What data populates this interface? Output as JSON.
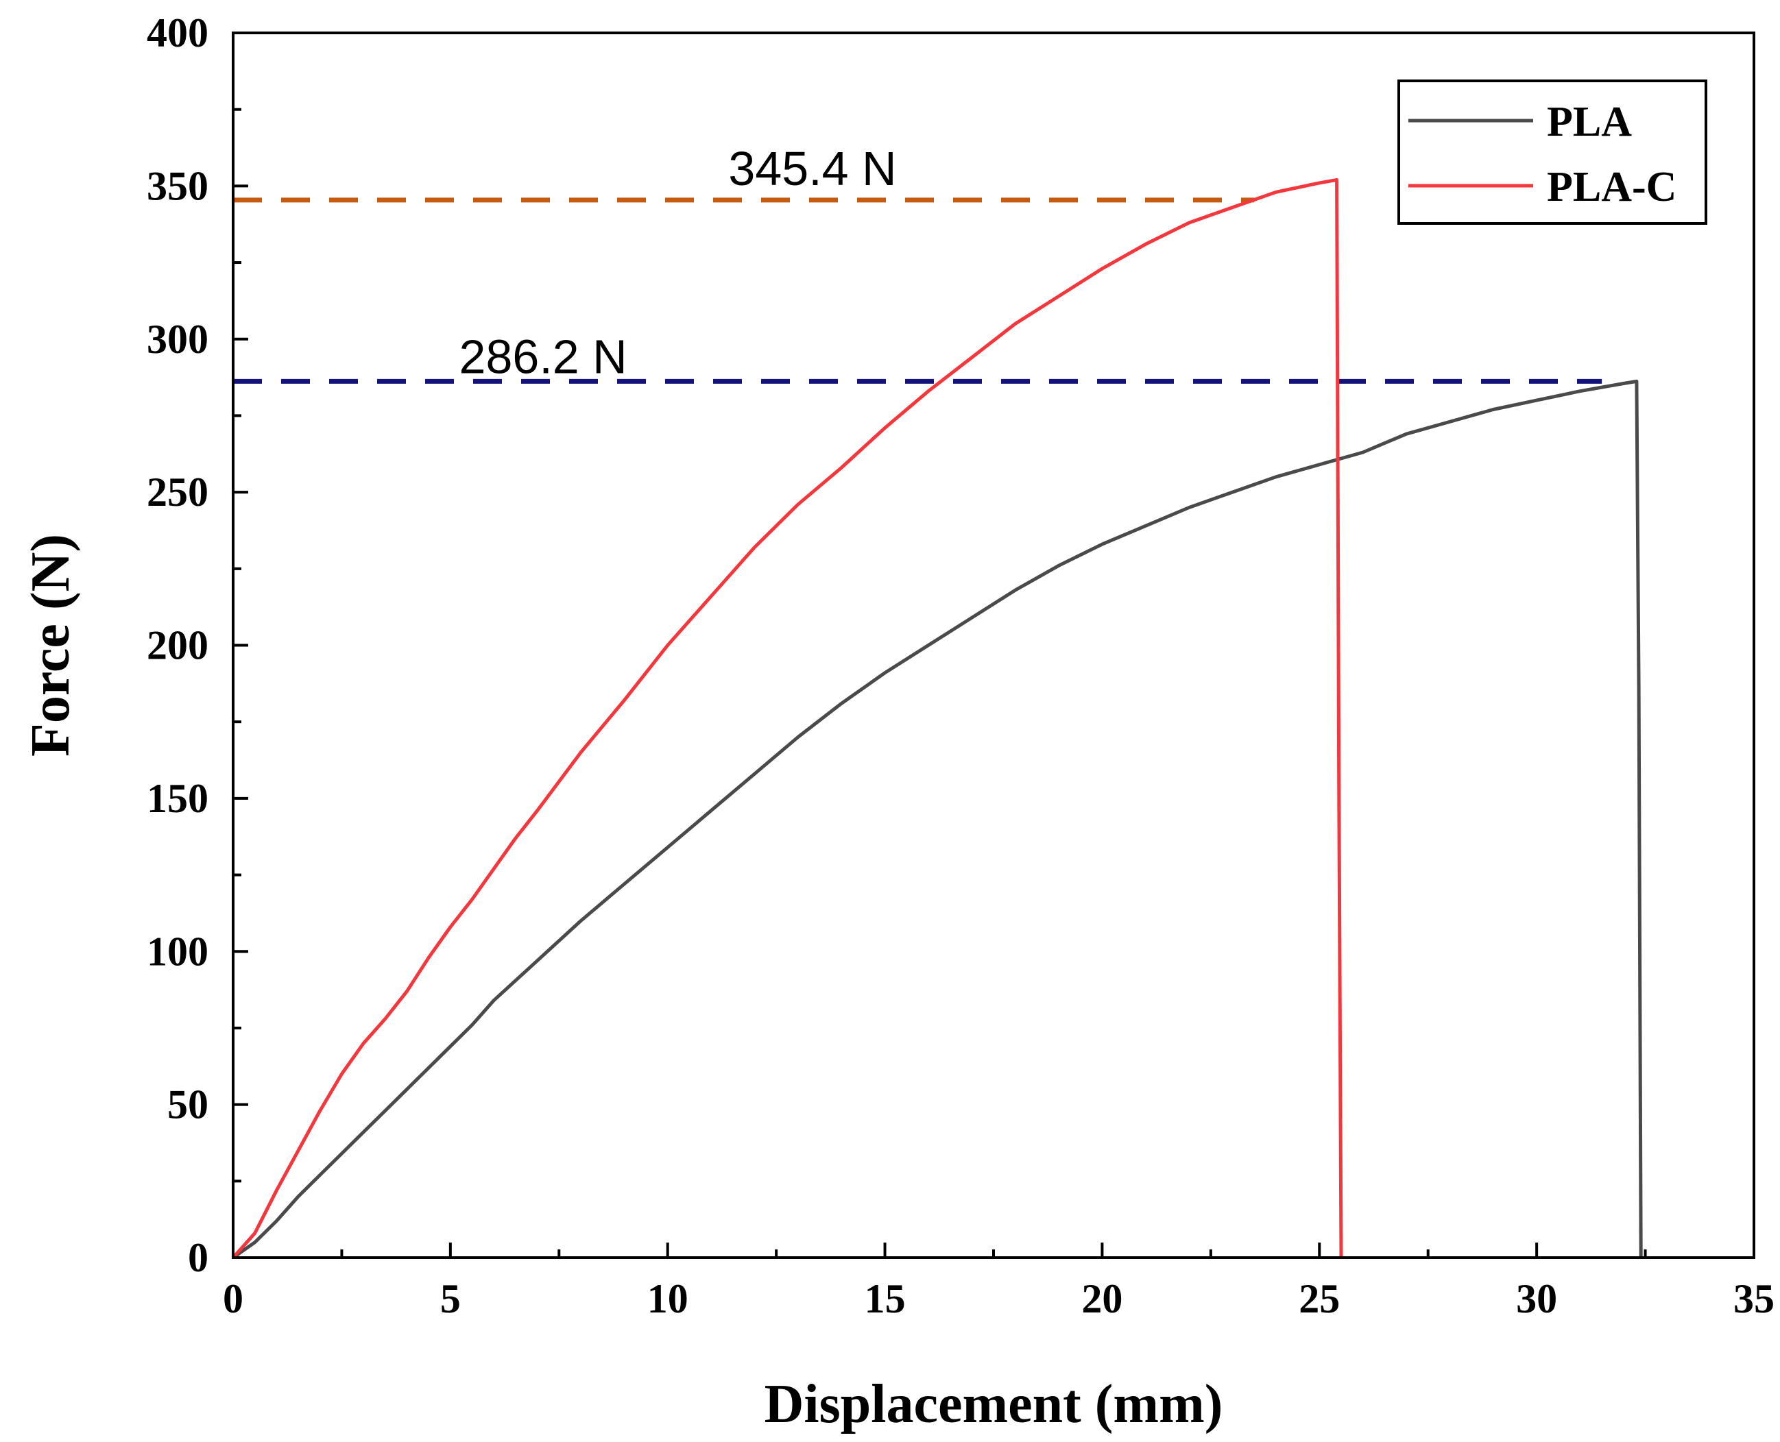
{
  "chart_data": {
    "type": "line",
    "title": "",
    "xlabel": "Displacement (mm)",
    "ylabel": "Force (N)",
    "xlim": [
      0,
      35
    ],
    "ylim": [
      0,
      400
    ],
    "xticks": [
      0,
      5,
      10,
      15,
      20,
      25,
      30,
      35
    ],
    "yticks": [
      0,
      50,
      100,
      150,
      200,
      250,
      300,
      350,
      400
    ],
    "xtick_labels": [
      "0",
      "5",
      "10",
      "15",
      "20",
      "25",
      "30",
      "35"
    ],
    "ytick_labels": [
      "0",
      "50",
      "100",
      "150",
      "200",
      "250",
      "300",
      "350",
      "400"
    ],
    "grid": false,
    "legend_position": "top-right",
    "series": [
      {
        "name": "PLA",
        "color": "#4a4a4a",
        "points": [
          [
            0,
            0
          ],
          [
            0.5,
            5
          ],
          [
            1,
            12
          ],
          [
            1.5,
            20
          ],
          [
            2,
            27
          ],
          [
            2.5,
            34
          ],
          [
            3,
            41
          ],
          [
            3.5,
            48
          ],
          [
            4,
            55
          ],
          [
            4.5,
            62
          ],
          [
            5,
            69
          ],
          [
            5.5,
            76
          ],
          [
            6,
            84
          ],
          [
            7,
            97
          ],
          [
            8,
            110
          ],
          [
            9,
            122
          ],
          [
            10,
            134
          ],
          [
            11,
            146
          ],
          [
            12,
            158
          ],
          [
            13,
            170
          ],
          [
            14,
            181
          ],
          [
            15,
            191
          ],
          [
            16,
            200
          ],
          [
            17,
            209
          ],
          [
            18,
            218
          ],
          [
            19,
            226
          ],
          [
            20,
            233
          ],
          [
            21,
            239
          ],
          [
            22,
            245
          ],
          [
            23,
            250
          ],
          [
            24,
            255
          ],
          [
            25,
            259
          ],
          [
            26,
            263
          ],
          [
            26.5,
            266
          ],
          [
            27,
            269
          ],
          [
            28,
            273
          ],
          [
            29,
            277
          ],
          [
            30,
            280
          ],
          [
            31,
            283
          ],
          [
            32,
            285.5
          ],
          [
            32.3,
            286.2
          ],
          [
            32.35,
            186
          ],
          [
            32.4,
            0
          ]
        ]
      },
      {
        "name": "PLA-C",
        "color": "#f4373c",
        "points": [
          [
            0,
            0
          ],
          [
            0.5,
            8
          ],
          [
            1,
            22
          ],
          [
            1.5,
            35
          ],
          [
            2,
            48
          ],
          [
            2.5,
            60
          ],
          [
            3,
            70
          ],
          [
            3.5,
            78
          ],
          [
            4,
            87
          ],
          [
            4.5,
            98
          ],
          [
            5,
            108
          ],
          [
            5.5,
            117
          ],
          [
            6,
            127
          ],
          [
            6.5,
            137
          ],
          [
            7,
            146
          ],
          [
            8,
            165
          ],
          [
            9,
            182
          ],
          [
            10,
            200
          ],
          [
            11,
            216
          ],
          [
            12,
            232
          ],
          [
            13,
            246
          ],
          [
            14,
            258
          ],
          [
            15,
            271
          ],
          [
            16,
            283
          ],
          [
            17,
            294
          ],
          [
            18,
            305
          ],
          [
            19,
            314
          ],
          [
            20,
            323
          ],
          [
            21,
            331
          ],
          [
            22,
            338
          ],
          [
            23,
            343
          ],
          [
            24,
            348
          ],
          [
            25,
            351
          ],
          [
            25.4,
            352
          ],
          [
            25.45,
            150
          ],
          [
            25.5,
            0
          ]
        ]
      }
    ],
    "reference_lines": [
      {
        "y": 345.4,
        "label": "345.4 N",
        "color": "#c55a11"
      },
      {
        "y": 286.2,
        "label": "286.2 N",
        "color": "#14137a"
      }
    ]
  }
}
